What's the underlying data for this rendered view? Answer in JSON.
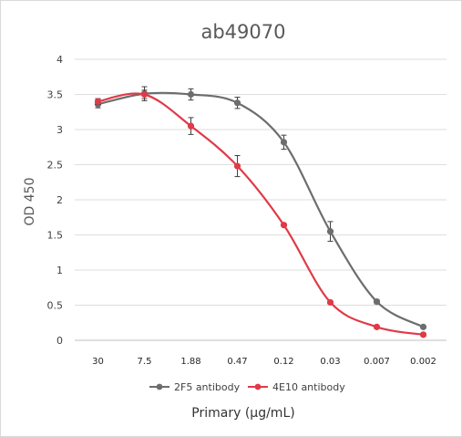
{
  "chart_data": {
    "type": "line",
    "title": "ab49070",
    "xlabel": "Primary (µg/mL)",
    "ylabel": "OD 450",
    "categories": [
      "30",
      "7.5",
      "1.88",
      "0.47",
      "0.12",
      "0.03",
      "0.007",
      "0.002"
    ],
    "ylim": [
      0,
      4
    ],
    "yticks": [
      "0",
      "0.5",
      "1",
      "1.5",
      "2",
      "2.5",
      "3",
      "3.5",
      "4"
    ],
    "grid": true,
    "legend_position": "bottom",
    "series": [
      {
        "name": "2F5 antibody",
        "color": "#6b6e6c",
        "values": [
          3.36,
          3.51,
          3.5,
          3.38,
          2.82,
          1.55,
          0.55,
          0.19
        ],
        "errors": [
          0.05,
          0.1,
          0.08,
          0.08,
          0.1,
          0.14,
          0.03,
          0.02
        ]
      },
      {
        "name": "4E10 antibody",
        "color": "#e03a48",
        "values": [
          3.4,
          3.5,
          3.05,
          2.48,
          1.64,
          0.54,
          0.19,
          0.08
        ],
        "errors": [
          0.04,
          0.06,
          0.12,
          0.15,
          0.02,
          0.02,
          0.02,
          0.02
        ]
      }
    ]
  }
}
